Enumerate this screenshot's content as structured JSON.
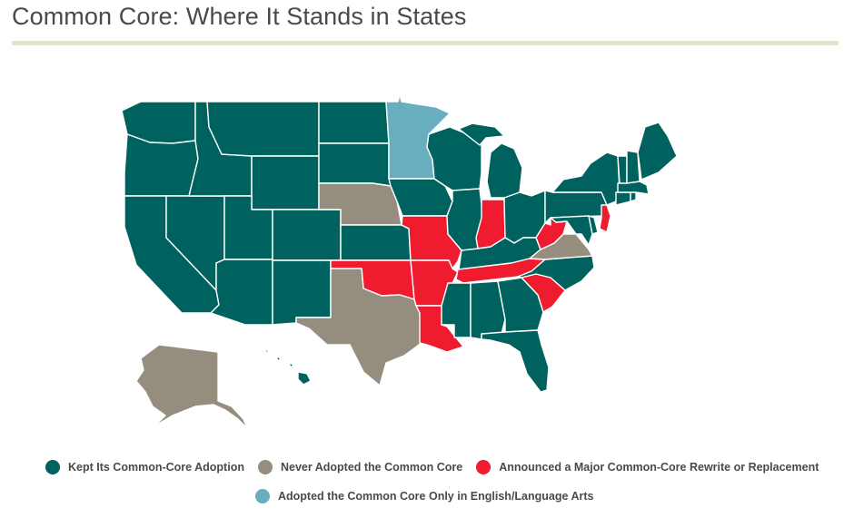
{
  "title": "Common Core: Where It Stands in States",
  "colors": {
    "kept": "#00625e",
    "never": "#958e7e",
    "rewrite": "#ee1c2e",
    "ela_only": "#68aebf",
    "rule": "#e8e1cc"
  },
  "legend": [
    {
      "key": "kept",
      "label": "Kept Its Common-Core Adoption"
    },
    {
      "key": "never",
      "label": "Never Adopted the Common Core"
    },
    {
      "key": "rewrite",
      "label": "Announced a Major Common-Core Rewrite or Replacement"
    },
    {
      "key": "ela_only",
      "label": "Adopted the Common Core Only in English/Language Arts"
    }
  ],
  "states": {
    "WA": "kept",
    "OR": "kept",
    "CA": "kept",
    "NV": "kept",
    "ID": "kept",
    "MT": "kept",
    "WY": "kept",
    "UT": "kept",
    "AZ": "kept",
    "CO": "kept",
    "NM": "kept",
    "ND": "kept",
    "SD": "kept",
    "NE": "never",
    "KS": "kept",
    "OK": "rewrite",
    "TX": "never",
    "MN": "ela_only",
    "IA": "kept",
    "MO": "rewrite",
    "AR": "rewrite",
    "LA": "rewrite",
    "WI": "kept",
    "IL": "kept",
    "MI": "kept",
    "IN": "rewrite",
    "OH": "kept",
    "KY": "kept",
    "TN": "rewrite",
    "MS": "kept",
    "AL": "kept",
    "GA": "kept",
    "FL": "kept",
    "SC": "rewrite",
    "NC": "kept",
    "VA": "never",
    "WV": "rewrite",
    "PA": "kept",
    "NY": "kept",
    "VT": "kept",
    "NH": "kept",
    "ME": "kept",
    "MA": "kept",
    "CT": "kept",
    "RI": "kept",
    "NJ": "rewrite",
    "DE": "kept",
    "MD": "kept",
    "AK": "never",
    "HI": "kept"
  }
}
